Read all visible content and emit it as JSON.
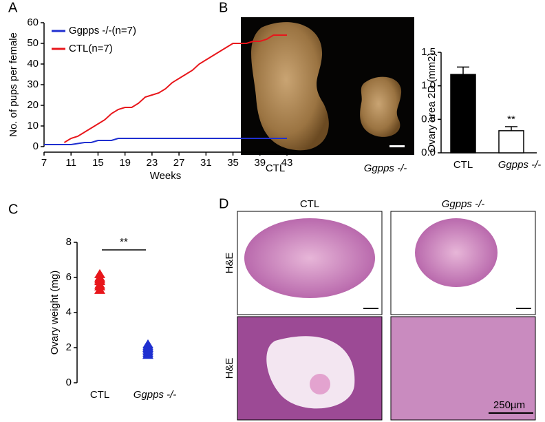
{
  "panel_labels": [
    "A",
    "B",
    "C",
    "D"
  ],
  "photos_b": {
    "captions": [
      "CTL",
      "Ggpps -/-"
    ]
  },
  "histology_d": {
    "columns": [
      "CTL",
      "Ggpps -/-"
    ],
    "rows": [
      "H&E",
      "H&E"
    ],
    "scale_bar": "250µm"
  },
  "chart_data": [
    {
      "type": "line",
      "ylabel": "No. of pups per female",
      "xlabel": "Weeks",
      "x": [
        7,
        8,
        9,
        10,
        11,
        12,
        13,
        14,
        15,
        16,
        17,
        18,
        19,
        20,
        21,
        22,
        23,
        24,
        25,
        26,
        27,
        28,
        29,
        30,
        31,
        32,
        33,
        34,
        35,
        36,
        37,
        38,
        39,
        40,
        41,
        42,
        43
      ],
      "series": [
        {
          "name": "Ggpps -/-(n=7)",
          "color": "#1f2fd0",
          "values": [
            1,
            1,
            1,
            1,
            1,
            1.5,
            2,
            2,
            3,
            3,
            3,
            4,
            4,
            4,
            4,
            4,
            4,
            4,
            4,
            4,
            4,
            4,
            4,
            4,
            4,
            4,
            4,
            4,
            4,
            4,
            4,
            4,
            4,
            4,
            4,
            4,
            4
          ]
        },
        {
          "name": "CTL(n=7)",
          "color": "#e8161b",
          "values": [
            null,
            null,
            null,
            2,
            4,
            5,
            7,
            9,
            11,
            13,
            16,
            18,
            19,
            19,
            21,
            24,
            25,
            26,
            28,
            31,
            33,
            35,
            37,
            40,
            42,
            44,
            46,
            48,
            50,
            50,
            50,
            51,
            51,
            52,
            54,
            54,
            54
          ]
        }
      ],
      "xlim": [
        7,
        43
      ],
      "xticks": [
        7,
        11,
        15,
        19,
        23,
        27,
        31,
        35,
        39,
        43
      ],
      "ylim": [
        0,
        60
      ],
      "yticks": [
        0,
        10,
        20,
        30,
        40,
        50,
        60
      ]
    },
    {
      "type": "bar",
      "ylabel": "Ovary area 2D (mm2)",
      "categories": [
        "CTL",
        "Ggpps -/-"
      ],
      "values": [
        1.17,
        0.33
      ],
      "errors": [
        0.11,
        0.06
      ],
      "colors": [
        "#000000",
        "#ffffff"
      ],
      "ylim": [
        0,
        1.5
      ],
      "yticks": [
        {
          "value": 0,
          "label": "0.0"
        },
        0.5,
        {
          "value": 1,
          "label": "1.0"
        },
        1.5
      ],
      "annotation": "**"
    },
    {
      "type": "strip",
      "ylabel": "Ovary weight (mg)",
      "categories": [
        "CTL",
        "Ggpps -/-"
      ],
      "groups": [
        {
          "color": "#e8161b",
          "values": [
            5.3,
            5.5,
            5.6,
            5.8,
            5.9,
            6.0,
            6.2
          ]
        },
        {
          "color": "#1f2fd0",
          "values": [
            1.6,
            1.7,
            1.8,
            1.9,
            2.0,
            2.1,
            2.2
          ]
        }
      ],
      "ylim": [
        0,
        8
      ],
      "yticks": [
        0,
        2,
        4,
        6,
        8
      ],
      "annotation": "**"
    }
  ]
}
